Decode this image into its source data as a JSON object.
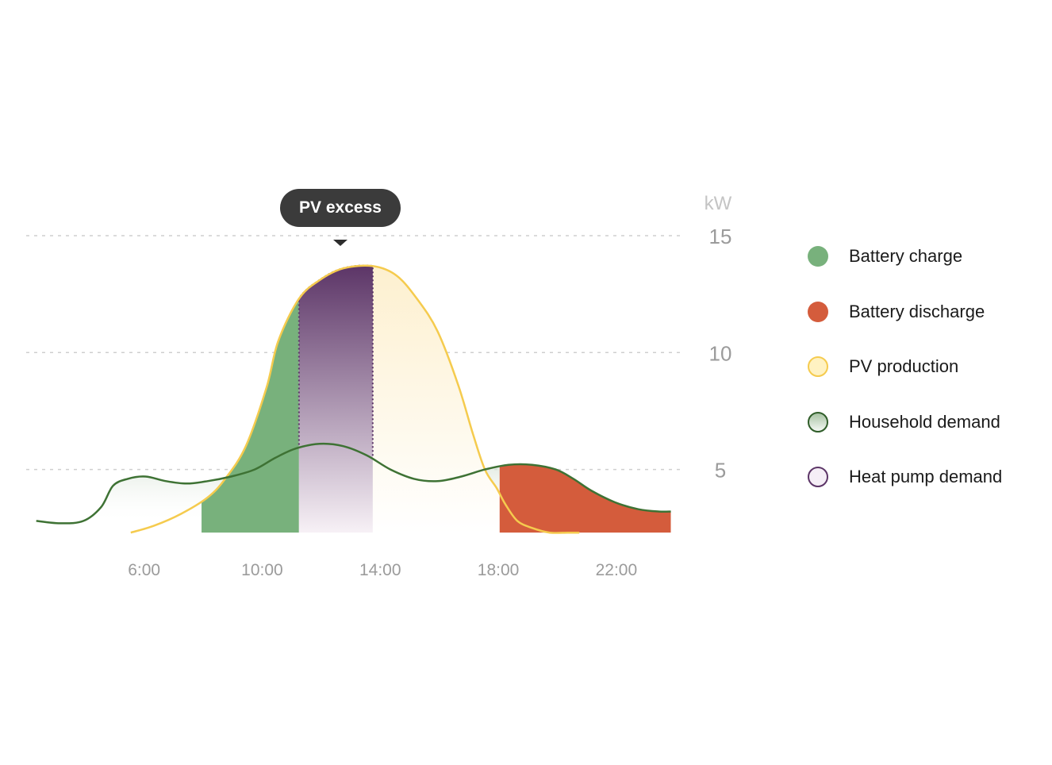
{
  "colors": {
    "battery_charge": "#78b17c",
    "battery_discharge": "#d45c3c",
    "pv_line": "#f5cb4e",
    "pv_fill": "#fff6dd",
    "household_line": "#3e7234",
    "household_fill": "#c9d9c7",
    "heat_pump_top": "#5c3567",
    "heat_pump_bottom": "#f7f1f6",
    "grid": "#cfcfcf",
    "axis_text": "#9b9b9b",
    "unit_text": "#c4c4c4"
  },
  "tooltip": {
    "label": "PV excess"
  },
  "chart_data": {
    "type": "area",
    "yunit": "kW",
    "ylim": [
      2,
      15
    ],
    "yticks": [
      {
        "value": 15,
        "label": "15"
      },
      {
        "value": 10,
        "label": "10"
      },
      {
        "value": 5,
        "label": "5"
      }
    ],
    "xlim": [
      2.3,
      24.1
    ],
    "xticks": [
      {
        "value": 6,
        "label": "6:00"
      },
      {
        "value": 10,
        "label": "10:00"
      },
      {
        "value": 14,
        "label": "14:00"
      },
      {
        "value": 18,
        "label": "18:00"
      },
      {
        "value": 22,
        "label": "22:00"
      }
    ],
    "grid": true,
    "legend_position": "right",
    "series": [
      {
        "name": "PV production",
        "x": [
          5.6,
          6.4,
          7.3,
          8.2,
          8.8,
          9.5,
          10.2,
          10.6,
          11.3,
          12.0,
          12.8,
          13.8,
          14.6,
          15.3,
          16.0,
          16.7,
          17.2,
          17.6,
          18.0,
          18.3,
          18.7,
          19.2,
          19.8,
          20.4,
          20.8
        ],
        "values": [
          2.3,
          2.6,
          3.1,
          3.8,
          4.6,
          6.0,
          8.5,
          10.5,
          12.3,
          13.1,
          13.6,
          13.7,
          13.3,
          12.3,
          10.9,
          8.6,
          6.5,
          5.0,
          4.2,
          3.5,
          2.8,
          2.5,
          2.3,
          2.3,
          2.3
        ]
      },
      {
        "name": "Household demand",
        "x": [
          2.4,
          3.2,
          4.0,
          4.6,
          5.0,
          5.5,
          6.1,
          6.8,
          7.5,
          8.2,
          9.0,
          9.8,
          10.5,
          11.2,
          12.0,
          12.8,
          13.6,
          14.4,
          15.2,
          16.0,
          16.8,
          17.6,
          18.4,
          19.2,
          20.0,
          20.6,
          21.2,
          22.0,
          22.8,
          23.5,
          23.9
        ],
        "values": [
          2.8,
          2.7,
          2.8,
          3.4,
          4.3,
          4.6,
          4.7,
          4.5,
          4.4,
          4.5,
          4.7,
          5.0,
          5.5,
          5.9,
          6.1,
          6.0,
          5.6,
          5.0,
          4.6,
          4.5,
          4.7,
          5.0,
          5.2,
          5.2,
          5.0,
          4.6,
          4.1,
          3.6,
          3.3,
          3.2,
          3.2
        ]
      },
      {
        "name": "Battery charge",
        "range_x": [
          8.0,
          11.3
        ]
      },
      {
        "name": "Heat pump demand",
        "range_x": [
          11.3,
          13.8
        ]
      },
      {
        "name": "Battery discharge",
        "range_x": [
          18.1,
          23.9
        ],
        "baseline": 2.3
      }
    ]
  }
}
